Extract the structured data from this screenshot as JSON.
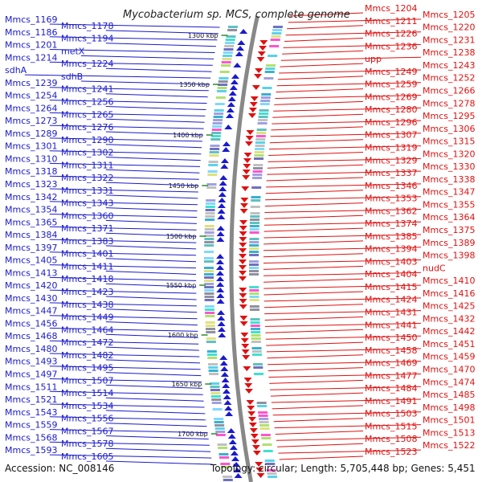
{
  "title": "Mycobacterium sp. MCS, complete genome",
  "accession": "Accession: NC_008146",
  "topology": "Topology: circular; Length: 5,705,448 bp; Genes: 5,451",
  "colors": {
    "forward": "#1a1acc",
    "reverse": "#e01010",
    "backbone": "#888888",
    "tick": "#2e8b2e"
  },
  "ticks": [
    "1300 kbp",
    "1350 kbp",
    "1400 kbp",
    "1450 kbp",
    "1500 kbp",
    "1550 kbp",
    "1600 kbp",
    "1650 kbp",
    "1700 kbp"
  ],
  "left_labels": [
    "Mmcs_1169",
    "Mmcs_1178",
    "Mmcs_1186",
    "Mmcs_1194",
    "Mmcs_1201",
    "metX",
    "Mmcs_1214",
    "Mmcs_1224",
    "sdhA",
    "sdhB",
    "Mmcs_1239",
    "Mmcs_1241",
    "Mmcs_1254",
    "Mmcs_1256",
    "Mmcs_1264",
    "Mmcs_1265",
    "Mmcs_1273",
    "Mmcs_1276",
    "Mmcs_1289",
    "Mmcs_1290",
    "Mmcs_1301",
    "Mmcs_1302",
    "Mmcs_1310",
    "Mmcs_1311",
    "Mmcs_1318",
    "Mmcs_1322",
    "Mmcs_1323",
    "Mmcs_1331",
    "Mmcs_1342",
    "Mmcs_1343",
    "Mmcs_1354",
    "Mmcs_1360",
    "Mmcs_1365",
    "Mmcs_1371",
    "Mmcs_1384",
    "Mmcs_1383",
    "Mmcs_1397",
    "Mmcs_1401",
    "Mmcs_1405",
    "Mmcs_1411",
    "Mmcs_1413",
    "Mmcs_1418",
    "Mmcs_1420",
    "Mmcs_1423",
    "Mmcs_1430",
    "Mmcs_1438",
    "Mmcs_1447",
    "Mmcs_1449",
    "Mmcs_1456",
    "Mmcs_1464",
    "Mmcs_1468",
    "Mmcs_1472",
    "Mmcs_1480",
    "Mmcs_1482",
    "Mmcs_1493",
    "Mmcs_1495",
    "Mmcs_1497",
    "Mmcs_1507",
    "Mmcs_1511",
    "Mmcs_1514",
    "Mmcs_1521",
    "Mmcs_1534",
    "Mmcs_1543",
    "Mmcs_1556",
    "Mmcs_1559",
    "Mmcs_1567",
    "Mmcs_1568",
    "Mmcs_1578",
    "Mmcs_1593",
    "Mmcs_1605"
  ],
  "right_labels": [
    "Mmcs_1204",
    "Mmcs_1205",
    "Mmcs_1211",
    "Mmcs_1220",
    "Mmcs_1226",
    "Mmcs_1231",
    "Mmcs_1236",
    "Mmcs_1238",
    "upp",
    "Mmcs_1243",
    "Mmcs_1249",
    "Mmcs_1252",
    "Mmcs_1259",
    "Mmcs_1266",
    "Mmcs_1269",
    "Mmcs_1278",
    "Mmcs_1280",
    "Mmcs_1295",
    "Mmcs_1296",
    "Mmcs_1306",
    "Mmcs_1307",
    "Mmcs_1315",
    "Mmcs_1319",
    "Mmcs_1320",
    "Mmcs_1329",
    "Mmcs_1330",
    "Mmcs_1337",
    "Mmcs_1338",
    "Mmcs_1346",
    "Mmcs_1347",
    "Mmcs_1353",
    "Mmcs_1355",
    "Mmcs_1362",
    "Mmcs_1364",
    "Mmcs_1374",
    "Mmcs_1375",
    "Mmcs_1385",
    "Mmcs_1389",
    "Mmcs_1394",
    "Mmcs_1398",
    "Mmcs_1403",
    "nudC",
    "Mmcs_1404",
    "Mmcs_1410",
    "Mmcs_1415",
    "Mmcs_1416",
    "Mmcs_1424",
    "Mmcs_1425",
    "Mmcs_1431",
    "Mmcs_1432",
    "Mmcs_1441",
    "Mmcs_1442",
    "Mmcs_1450",
    "Mmcs_1451",
    "Mmcs_1458",
    "Mmcs_1459",
    "Mmcs_1469",
    "Mmcs_1470",
    "Mmcs_1477",
    "Mmcs_1474",
    "Mmcs_1484",
    "Mmcs_1485",
    "Mmcs_1491",
    "Mmcs_1498",
    "Mmcs_1503",
    "Mmcs_1501",
    "Mmcs_1515",
    "Mmcs_1513",
    "Mmcs_1508",
    "Mmcs_1522",
    "Mmcs_1523"
  ]
}
